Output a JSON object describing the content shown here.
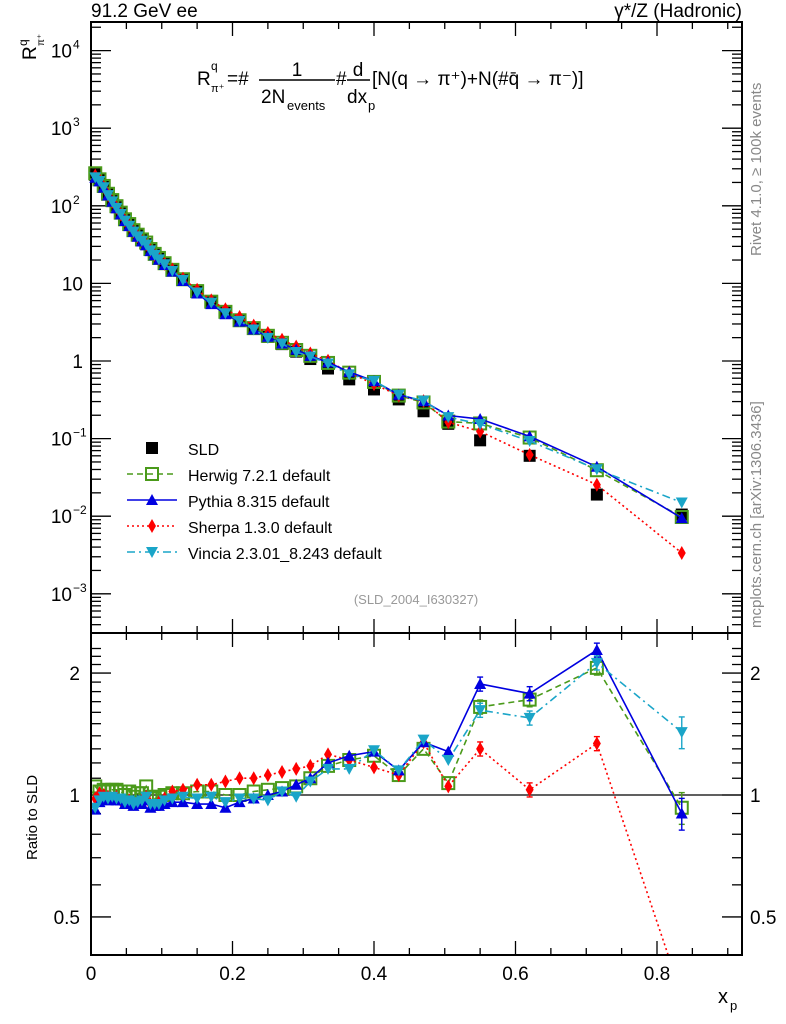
{
  "chart_data": {
    "type": "scatter",
    "title_left": "91.2 GeV ee",
    "title_right": "γ*/Z (Hadronic)",
    "formula": {
      "lhs": "R",
      "lhs_sup": "q",
      "lhs_sub": "π⁺",
      "eq": "=#",
      "frac1_num": "1",
      "frac1_den": "2N",
      "frac1_den_sub": "events",
      "hash": "#",
      "frac2_num": "d",
      "frac2_den": "dx",
      "frac2_den_sub": "p",
      "tail": "[N(q → π⁺)+N(#q̄ → π⁻)]"
    },
    "ylabel_main": {
      "base": "R",
      "sup": "q",
      "sub": "π⁺"
    },
    "ylabel_ratio": "Ratio to SLD",
    "xlabel": {
      "base": "x",
      "sub": "p"
    },
    "side_text_top": "Rivet 4.1.0, ≥ 100k events",
    "side_text_bottom": "mcplots.cern.ch [arXiv:1306.3436]",
    "analysis_label": "(SLD_2004_I630327)",
    "xlim": [
      0,
      0.92
    ],
    "ylim_main": [
      0.0003,
      15000
    ],
    "ylim_ratio": [
      0.42,
      2.3
    ],
    "yscale_main": "log",
    "yscale_ratio": "log",
    "legend_position": "center-left",
    "x_ticks": [
      {
        "v": 0,
        "label": "0"
      },
      {
        "v": 0.2,
        "label": "0.2"
      },
      {
        "v": 0.4,
        "label": "0.4"
      },
      {
        "v": 0.6,
        "label": "0.6"
      },
      {
        "v": 0.8,
        "label": "0.8"
      }
    ],
    "y_ticks_main": [
      {
        "v": 10000,
        "base": "10",
        "exp": "4"
      },
      {
        "v": 1000,
        "base": "10",
        "exp": "3"
      },
      {
        "v": 100,
        "base": "10",
        "exp": "2"
      },
      {
        "v": 10,
        "base": "10",
        "exp": ""
      },
      {
        "v": 1,
        "base": "1",
        "exp": ""
      },
      {
        "v": 0.1,
        "base": "10",
        "exp": "−1"
      },
      {
        "v": 0.01,
        "base": "10",
        "exp": "−2"
      },
      {
        "v": 0.001,
        "base": "10",
        "exp": "−3"
      }
    ],
    "y_ticks_ratio": [
      {
        "v": 2,
        "label": "2"
      },
      {
        "v": 1,
        "label": "1"
      },
      {
        "v": 0.5,
        "label": "0.5"
      }
    ],
    "x": [
      0.006,
      0.012,
      0.018,
      0.024,
      0.03,
      0.036,
      0.042,
      0.048,
      0.054,
      0.06,
      0.066,
      0.072,
      0.078,
      0.084,
      0.09,
      0.096,
      0.104,
      0.115,
      0.13,
      0.15,
      0.17,
      0.19,
      0.21,
      0.23,
      0.25,
      0.27,
      0.29,
      0.31,
      0.335,
      0.365,
      0.4,
      0.435,
      0.47,
      0.505,
      0.55,
      0.62,
      0.715,
      0.835
    ],
    "series": [
      {
        "name": "SLD",
        "color": "#000000",
        "marker": "square",
        "line": "none",
        "values": [
          250,
          215,
          175,
          140,
          115,
          96,
          80,
          67,
          57,
          49,
          42,
          36.5,
          32,
          28,
          24.5,
          21.5,
          18.2,
          14.8,
          11.2,
          7.8,
          5.7,
          4.3,
          3.35,
          2.6,
          2.05,
          1.65,
          1.32,
          1.06,
          0.8,
          0.58,
          0.43,
          0.32,
          0.225,
          0.155,
          0.095,
          0.06,
          0.019,
          0.0105
        ],
        "ratio": [
          1,
          1,
          1,
          1,
          1,
          1,
          1,
          1,
          1,
          1,
          1,
          1,
          1,
          1,
          1,
          1,
          1,
          1,
          1,
          1,
          1,
          1,
          1,
          1,
          1,
          1,
          1,
          1,
          1,
          1,
          1,
          1,
          1,
          1,
          1,
          1,
          1,
          1
        ]
      },
      {
        "name": "Herwig 7.2.1 default",
        "color": "#4a9a1a",
        "marker": "open-square",
        "line": "dashed",
        "ratio": [
          1.05,
          1.02,
          1.03,
          1.02,
          1.03,
          1.03,
          1.02,
          1.0,
          1.02,
          0.99,
          1.01,
          1.01,
          1.05,
          0.99,
          0.98,
          0.99,
          1.0,
          1.01,
          1.01,
          1.02,
          1.02,
          1.0,
          1.0,
          1.02,
          1.03,
          1.04,
          1.05,
          1.1,
          1.18,
          1.22,
          1.25,
          1.12,
          1.3,
          1.07,
          1.65,
          1.72,
          2.06,
          0.93
        ]
      },
      {
        "name": "Pythia 8.315 default",
        "color": "#0000e0",
        "marker": "triangle-up",
        "line": "solid",
        "ratio": [
          0.92,
          0.96,
          0.98,
          0.97,
          0.98,
          0.97,
          0.97,
          0.95,
          0.96,
          0.94,
          0.95,
          0.95,
          0.97,
          0.93,
          0.94,
          0.94,
          0.95,
          0.96,
          0.96,
          0.95,
          0.95,
          0.93,
          0.96,
          0.98,
          1.0,
          1.02,
          1.06,
          1.1,
          1.2,
          1.25,
          1.28,
          1.15,
          1.35,
          1.28,
          1.88,
          1.78,
          2.28,
          0.9
        ]
      },
      {
        "name": "Sherpa 1.3.0 default",
        "color": "#ff0000",
        "marker": "diamond",
        "line": "dotted",
        "ratio": [
          0.98,
          1.01,
          1.0,
          0.99,
          0.98,
          0.99,
          0.97,
          0.96,
          0.97,
          0.95,
          0.96,
          0.97,
          0.99,
          0.95,
          0.94,
          0.96,
          0.98,
          1.02,
          1.03,
          1.06,
          1.06,
          1.08,
          1.1,
          1.1,
          1.12,
          1.14,
          1.16,
          1.18,
          1.26,
          1.22,
          1.17,
          1.12,
          1.35,
          1.05,
          1.3,
          1.03,
          1.34,
          0.32
        ]
      },
      {
        "name": "Vincia 2.3.01_8.243 default",
        "color": "#1aa5c8",
        "marker": "triangle-down",
        "line": "dashdot",
        "ratio": [
          0.93,
          0.97,
          0.99,
          0.98,
          0.99,
          0.98,
          0.98,
          0.96,
          0.97,
          0.95,
          0.96,
          0.97,
          0.99,
          0.95,
          0.95,
          0.95,
          0.97,
          0.98,
          0.99,
          0.98,
          0.99,
          0.96,
          0.98,
          0.98,
          0.97,
          1.02,
          0.99,
          1.08,
          1.16,
          1.16,
          1.29,
          1.15,
          1.37,
          1.22,
          1.62,
          1.55,
          2.12,
          1.43
        ]
      }
    ],
    "ratio_errors_last": {
      "Herwig 7.2.1 default": 0.09,
      "Pythia 8.315 default": 0.09,
      "Vincia 2.3.01_8.243 default": 0.09
    }
  }
}
